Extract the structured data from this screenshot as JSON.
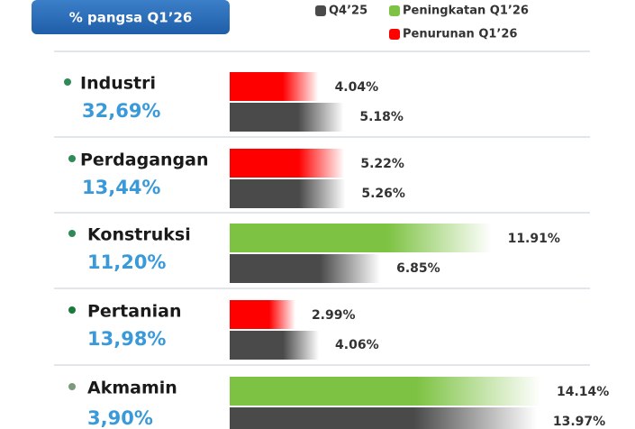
{
  "chart_data": {
    "type": "bar",
    "badge": "% pangsa Q1’26",
    "legend": [
      {
        "name": "Q4’25",
        "color": "#4a4a4a"
      },
      {
        "name": "Peningkatan  Q1’26",
        "color": "#7dc242"
      },
      {
        "name": "Penurunan Q1’26",
        "color": "#ff0000"
      }
    ],
    "categories": [
      "Industri",
      "Perdagangan",
      "Konstruksi",
      "Pertanian",
      "Akmamin"
    ],
    "shares": [
      "32,69%",
      "13,44%",
      "11,20%",
      "13,98%",
      "3,90%"
    ],
    "q1_values": [
      4.04,
      5.22,
      11.91,
      2.99,
      14.14
    ],
    "q1_value_labels": [
      "4.04%",
      "5.22%",
      "11.91%",
      "2.99%",
      "14.14%"
    ],
    "q4_values": [
      5.18,
      5.26,
      6.85,
      4.06,
      13.97
    ],
    "q4_value_labels": [
      "5.18%",
      "5.26%",
      "6.85%",
      "4.06%",
      "13.97%"
    ]
  }
}
